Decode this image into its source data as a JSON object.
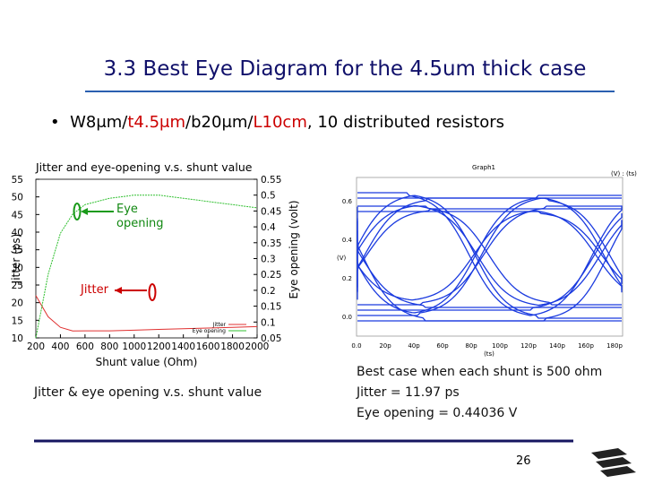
{
  "title": "3.3 Best Eye Diagram for the 4.5um thick case",
  "bullet": {
    "parts": [
      "W8μm/",
      "t4.5μm",
      "/b20μm/",
      "L10cm",
      ", 10 distributed resistors"
    ]
  },
  "chart_data": {
    "type": "line",
    "title": "Jitter and eye-opening v.s. shunt value",
    "x_label": "Shunt value (Ohm)",
    "y_label": "Jitter (ps)",
    "y2_label": "Eye opening (volt)",
    "x": [
      200,
      300,
      400,
      500,
      600,
      800,
      1000,
      1200,
      1400,
      1600,
      1800,
      2000
    ],
    "series": [
      {
        "name": "Jitter",
        "color": "#e03030",
        "values": [
          22,
          16,
          13,
          11.97,
          12,
          12,
          12.2,
          12.4,
          12.6,
          12.8,
          13,
          13.2
        ]
      },
      {
        "name": "Eye opening",
        "color": "#30c030",
        "axis": "y2",
        "values": [
          0.05,
          0.25,
          0.38,
          0.44,
          0.47,
          0.49,
          0.5,
          0.5,
          0.49,
          0.48,
          0.47,
          0.46
        ]
      }
    ],
    "xlim": [
      200,
      2000
    ],
    "xticks": [
      200,
      400,
      600,
      800,
      1000,
      1200,
      1400,
      1600,
      1800,
      2000
    ],
    "ylim": [
      10,
      55
    ],
    "yticks": [
      10,
      15,
      20,
      25,
      30,
      35,
      40,
      45,
      50,
      55
    ],
    "y2lim": [
      0.05,
      0.55
    ],
    "y2ticks": [
      0.05,
      0.1,
      0.15,
      0.2,
      0.25,
      0.3,
      0.35,
      0.4,
      0.45,
      0.5,
      0.55
    ],
    "annotations": [
      "Eye opening",
      "Jitter"
    ]
  },
  "caption": "Jitter & eye opening v.s. shunt value",
  "eye_diagram": {
    "title": "Graph1",
    "legend": "(V) : (ts)",
    "x_label": "(ts)",
    "y_label": "(V)",
    "xtick_labels": [
      "0.0",
      "20p",
      "40p",
      "60p",
      "80p",
      "100p",
      "120p",
      "140p",
      "160p",
      "180p"
    ],
    "ytick_labels": [
      "0.6",
      "0.4",
      "0.2",
      "0.0"
    ]
  },
  "result": [
    "Best case when each shunt is 500 ohm",
    "Jitter = 11.97 ps",
    "Eye opening = 0.44036 V"
  ],
  "page_number": "26"
}
